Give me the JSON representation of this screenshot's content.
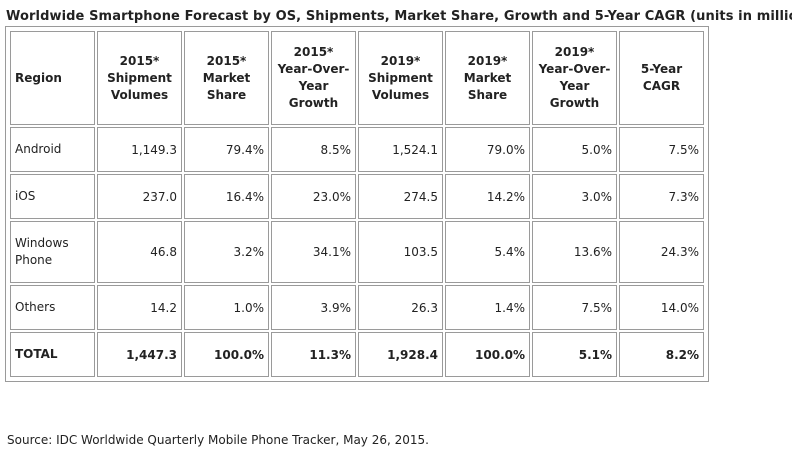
{
  "title": "Worldwide Smartphone Forecast by OS, Shipments, Market Share, Growth and 5-Year CAGR (units in millions)",
  "table": {
    "headers": [
      "Region",
      "2015* Shipment Volumes",
      "2015* Market Share",
      "2015* Year-Over-Year Growth",
      "2019* Shipment Volumes",
      "2019* Market Share",
      "2019* Year-Over-Year Growth",
      "5-Year CAGR"
    ],
    "rows": [
      [
        "Android",
        "1,149.3",
        "79.4%",
        "8.5%",
        "1,524.1",
        "79.0%",
        "5.0%",
        "7.5%"
      ],
      [
        "iOS",
        "237.0",
        "16.4%",
        "23.0%",
        "274.5",
        "14.2%",
        "3.0%",
        "7.3%"
      ],
      [
        "Windows Phone",
        "46.8",
        "3.2%",
        "34.1%",
        "103.5",
        "5.4%",
        "13.6%",
        "24.3%"
      ],
      [
        "Others",
        "14.2",
        "1.0%",
        "3.9%",
        "26.3",
        "1.4%",
        "7.5%",
        "14.0%"
      ],
      [
        "TOTAL",
        "1,447.3",
        "100.0%",
        "11.3%",
        "1,928.4",
        "100.0%",
        "5.1%",
        "8.2%"
      ]
    ]
  },
  "source": "Source: IDC Worldwide Quarterly Mobile Phone Tracker, May 26, 2015."
}
